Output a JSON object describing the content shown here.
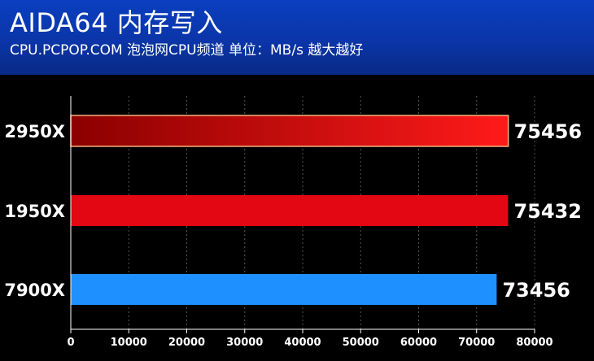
{
  "header": {
    "title": "AIDA64 内存写入",
    "subtitle": "CPU.PCPOP.COM 泡泡网CPU频道 单位：MB/s 越大越好"
  },
  "colors": {
    "header_bg": "#0b3bb5",
    "bar_2950x_start": "#8b0000",
    "bar_2950x_end": "#ff1a1a",
    "bar_1950x": "#e30613",
    "bar_7900x": "#1e90ff",
    "axis": "#ffffff",
    "gridline": "#555555"
  },
  "chart_data": {
    "type": "bar",
    "orientation": "horizontal",
    "title": "AIDA64 内存写入",
    "subtitle": "CPU.PCPOP.COM 泡泡网CPU频道 单位：MB/s 越大越好",
    "categories": [
      "2950X",
      "1950X",
      "7900X"
    ],
    "values": [
      75456,
      75432,
      73456
    ],
    "value_labels": [
      "75456",
      "75432",
      "73456"
    ],
    "xlim": [
      0,
      80000
    ],
    "x_ticks": [
      "0",
      "10000",
      "20000",
      "30000",
      "40000",
      "50000",
      "60000",
      "70000",
      "80000"
    ],
    "x_tick_values": [
      0,
      10000,
      20000,
      30000,
      40000,
      50000,
      60000,
      70000,
      80000
    ],
    "grid": true,
    "legend": "none"
  }
}
